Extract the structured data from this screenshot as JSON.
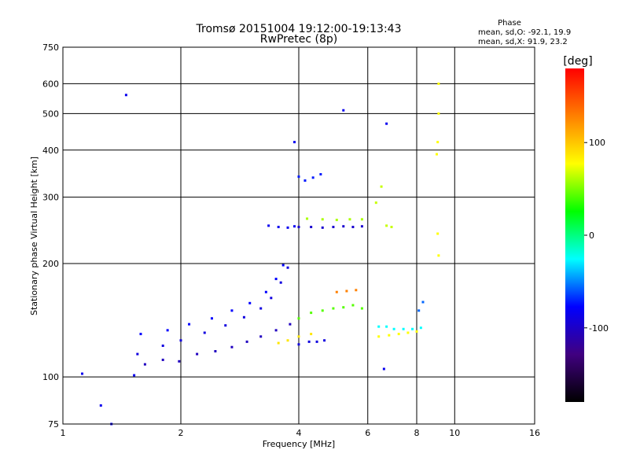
{
  "chart_data": {
    "type": "scatter",
    "title": "Tromsø 20151004 19:12:00-19:13:43",
    "subtitle": "RwPretec (8p)",
    "xlabel": "Frequency [MHz]",
    "ylabel": "Stationary phase Virtual Height [km]",
    "x_scale": "log",
    "y_scale": "log",
    "xlim": [
      1,
      16
    ],
    "ylim": [
      75,
      750
    ],
    "x_ticks": [
      "1",
      "2",
      "4",
      "6",
      "8",
      "10",
      "16"
    ],
    "y_ticks": [
      "75",
      "100",
      "200",
      "300",
      "400",
      "500",
      "600",
      "750"
    ],
    "grid": true,
    "stats": {
      "heading": "Phase",
      "line_o": "mean, sd,O: -92.1, 19.9",
      "line_x": "mean, sd,X:  91.9, 23.2"
    },
    "colorbar": {
      "unit_label": "[deg]",
      "range": [
        -180,
        180
      ],
      "ticks": [
        "100",
        "0",
        "-100"
      ],
      "colors": [
        "#ff0000",
        "#ff8000",
        "#ffff00",
        "#00ff00",
        "#00ffff",
        "#0000ff",
        "#400080",
        "#000000"
      ]
    },
    "traces": [
      {
        "name": "",
        "phase": -110,
        "points": [
          [
            1.62,
            108
          ],
          [
            1.8,
            111
          ],
          [
            1.98,
            110
          ],
          [
            2.2,
            115
          ],
          [
            2.45,
            117
          ],
          [
            2.7,
            120
          ],
          [
            2.95,
            124
          ],
          [
            3.2,
            128
          ],
          [
            3.5,
            133
          ],
          [
            3.8,
            138
          ]
        ]
      },
      {
        "name": "",
        "phase": -100,
        "points": [
          [
            1.55,
            115
          ],
          [
            1.8,
            121
          ],
          [
            2.0,
            125
          ],
          [
            2.3,
            131
          ],
          [
            2.6,
            137
          ],
          [
            2.9,
            144
          ],
          [
            3.2,
            152
          ],
          [
            3.4,
            162
          ],
          [
            3.6,
            178
          ],
          [
            3.75,
            195
          ]
        ]
      },
      {
        "name": "",
        "phase": -90,
        "points": [
          [
            1.58,
            130
          ],
          [
            1.85,
            133
          ],
          [
            2.1,
            138
          ],
          [
            2.4,
            143
          ],
          [
            2.7,
            150
          ],
          [
            3.0,
            157
          ],
          [
            3.3,
            168
          ],
          [
            3.5,
            182
          ],
          [
            3.65,
            198
          ]
        ]
      },
      {
        "name": "",
        "phase": -95,
        "points": [
          [
            3.35,
            252
          ],
          [
            3.55,
            250
          ],
          [
            3.75,
            249
          ],
          [
            3.9,
            251
          ]
        ]
      },
      {
        "name": "",
        "phase": -105,
        "points": [
          [
            4.0,
            250
          ],
          [
            4.3,
            250
          ],
          [
            4.6,
            249
          ],
          [
            4.9,
            250
          ],
          [
            5.2,
            251
          ],
          [
            5.5,
            250
          ],
          [
            5.8,
            251
          ]
        ]
      },
      {
        "name": "",
        "phase": 60,
        "points": [
          [
            4.2,
            263
          ],
          [
            4.6,
            262
          ],
          [
            5.0,
            261
          ],
          [
            5.4,
            262
          ],
          [
            5.8,
            262
          ]
        ]
      },
      {
        "name": "",
        "phase": -85,
        "points": [
          [
            4.0,
            340
          ],
          [
            4.15,
            332
          ],
          [
            4.35,
            338
          ],
          [
            4.55,
            345
          ]
        ]
      },
      {
        "name": "",
        "phase": -100,
        "points": [
          [
            4.0,
            122
          ],
          [
            4.25,
            124
          ],
          [
            4.45,
            124
          ],
          [
            4.65,
            125
          ]
        ]
      },
      {
        "name": "",
        "phase": 100,
        "points": [
          [
            3.55,
            123
          ],
          [
            3.75,
            125
          ],
          [
            4.0,
            128
          ],
          [
            4.3,
            130
          ]
        ]
      },
      {
        "name": "",
        "phase": 30,
        "points": [
          [
            4.0,
            143
          ],
          [
            4.3,
            148
          ],
          [
            4.6,
            150
          ],
          [
            4.9,
            152
          ],
          [
            5.2,
            153
          ],
          [
            5.5,
            155
          ],
          [
            5.8,
            152
          ]
        ]
      },
      {
        "name": "",
        "phase": 140,
        "points": [
          [
            5.0,
            168
          ],
          [
            5.3,
            169
          ],
          [
            5.6,
            170
          ]
        ]
      },
      {
        "name": "",
        "phase": -40,
        "points": [
          [
            6.4,
            136
          ],
          [
            6.7,
            136
          ],
          [
            7.0,
            134
          ],
          [
            7.4,
            134
          ],
          [
            7.8,
            134
          ],
          [
            8.2,
            135
          ]
        ]
      },
      {
        "name": "",
        "phase": 90,
        "points": [
          [
            6.4,
            128
          ],
          [
            6.8,
            129
          ],
          [
            7.2,
            130
          ],
          [
            7.6,
            131
          ],
          [
            8.0,
            132
          ]
        ]
      },
      {
        "name": "",
        "phase": 70,
        "points": [
          [
            6.3,
            290
          ],
          [
            6.5,
            320
          ],
          [
            6.7,
            252
          ],
          [
            6.9,
            250
          ]
        ]
      },
      {
        "name": "",
        "phase": -70,
        "points": [
          [
            8.1,
            150
          ],
          [
            8.3,
            158
          ]
        ]
      },
      {
        "name": "",
        "phase": 90,
        "points": [
          [
            9.1,
            600
          ],
          [
            9.1,
            500
          ],
          [
            9.05,
            420
          ],
          [
            9.0,
            390
          ],
          [
            9.05,
            240
          ],
          [
            9.1,
            210
          ]
        ]
      },
      {
        "name": "",
        "phase": -95,
        "points": [
          [
            1.12,
            102
          ],
          [
            1.25,
            84
          ],
          [
            1.33,
            75
          ],
          [
            1.45,
            560
          ],
          [
            1.52,
            101
          ],
          [
            3.9,
            420
          ],
          [
            5.2,
            510
          ],
          [
            6.7,
            470
          ],
          [
            6.6,
            105
          ]
        ]
      }
    ]
  }
}
